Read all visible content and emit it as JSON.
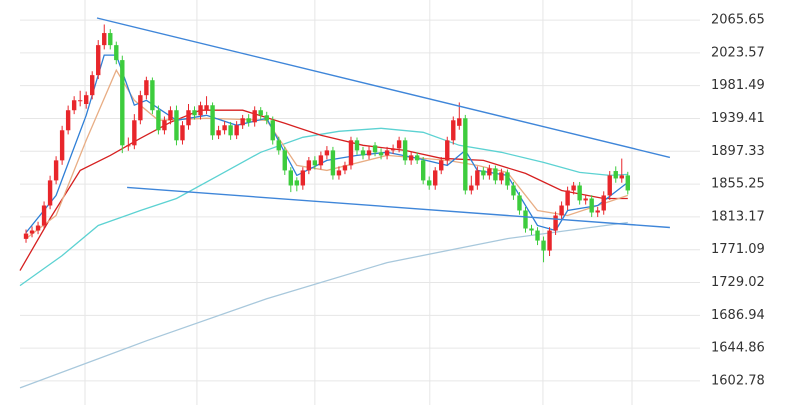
{
  "chart_data": {
    "type": "candlestick",
    "open": [
      1785.0,
      1791.8,
      1795.7,
      1802.1,
      1827.8,
      1860.0,
      1885.7,
      1924.3,
      1950.0,
      1962.8,
      1958.0,
      1969.3,
      1995.0,
      2033.5,
      2049.0,
      2033.5,
      2014.3,
      1905.0,
      1905.0,
      1937.1,
      1969.3,
      1988.5,
      1950.0,
      1924.3,
      1937.1,
      1950.0,
      1911.4,
      1930.7,
      1950.0,
      1943.5,
      1950.0,
      1956.4,
      1917.8,
      1924.3,
      1930.7,
      1917.8,
      1930.7,
      1939.7,
      1934.5,
      1950.0,
      1943.5,
      1937.1,
      1911.4,
      1898.5,
      1872.8,
      1860.0,
      1853.5,
      1872.8,
      1885.7,
      1879.3,
      1892.1,
      1898.5,
      1866.4,
      1872.8,
      1879.3,
      1911.4,
      1898.5,
      1892.1,
      1905.0,
      1896.0,
      1892.1,
      1898.5,
      1901.1,
      1911.4,
      1885.7,
      1892.1,
      1885.7,
      1860.0,
      1853.5,
      1872.8,
      1885.7,
      1911.4,
      1930.0,
      1939.7,
      1847.1,
      1853.5,
      1872.8,
      1866.4,
      1875.4,
      1860.0,
      1870.3,
      1853.5,
      1840.7,
      1821.4,
      1798.3,
      1795.7,
      1782.8,
      1770.0,
      1795.7,
      1815.0,
      1827.8,
      1847.1,
      1853.5,
      1834.3,
      1836.8,
      1818.8,
      1821.4,
      1840.7,
      1872.0,
      1862.5,
      1866.4
    ],
    "high": [
      1797,
      1801,
      1807,
      1833,
      1866,
      1891,
      1930,
      1956,
      1968,
      1975,
      1974,
      2000,
      2040,
      2060,
      2054,
      2038,
      2020,
      1915,
      1945,
      1975,
      1993,
      1992,
      1956,
      1942,
      1955,
      1956,
      1936,
      1958,
      1955,
      1961,
      1968,
      1960,
      1930,
      1936,
      1935,
      1936,
      1944,
      1945,
      1955,
      1954,
      1948,
      1942,
      1916,
      1903,
      1877,
      1864,
      1877,
      1890,
      1891,
      1897,
      1904,
      1903,
      1878,
      1884,
      1916,
      1915,
      1903,
      1904,
      1909,
      1901,
      1903,
      1906,
      1916,
      1915,
      1897,
      1896,
      1890,
      1865,
      1877,
      1890,
      1916,
      1942,
      1960,
      1944,
      1866,
      1878,
      1877,
      1880,
      1879,
      1875,
      1874,
      1858,
      1845,
      1826,
      1803,
      1800,
      1788,
      1800,
      1820,
      1833,
      1852,
      1858,
      1858,
      1842,
      1841,
      1826,
      1846,
      1872,
      1878,
      1888,
      1871
    ],
    "low": [
      1780,
      1787,
      1791,
      1797,
      1823,
      1855,
      1880,
      1919,
      1945,
      1955,
      1952,
      1964,
      1990,
      2028,
      2028,
      2009,
      1895,
      1898,
      1900,
      1932,
      1964,
      1945,
      1919,
      1919,
      1932,
      1905,
      1906,
      1925,
      1938,
      1938,
      1945,
      1912,
      1913,
      1919,
      1912,
      1913,
      1926,
      1929,
      1929,
      1938,
      1932,
      1906,
      1893,
      1867,
      1845,
      1846,
      1848,
      1868,
      1874,
      1874,
      1887,
      1861,
      1861,
      1868,
      1874,
      1893,
      1887,
      1887,
      1891,
      1887,
      1887,
      1894,
      1896,
      1880,
      1880,
      1881,
      1855,
      1848,
      1848,
      1868,
      1880,
      1906,
      1925,
      1842,
      1842,
      1848,
      1861,
      1861,
      1855,
      1855,
      1848,
      1835,
      1816,
      1793,
      1790,
      1777,
      1755,
      1763,
      1790,
      1810,
      1822,
      1842,
      1829,
      1829,
      1813,
      1813,
      1816,
      1835,
      1857,
      1857,
      1842
    ],
    "close": [
      1791.8,
      1795.7,
      1802.1,
      1827.8,
      1860.0,
      1885.7,
      1924.3,
      1950.0,
      1962.8,
      1962.8,
      1969.3,
      1995.0,
      2033.5,
      2049.0,
      2033.5,
      2014.3,
      1905.0,
      1905.0,
      1937.1,
      1969.3,
      1988.5,
      1950.0,
      1924.3,
      1937.1,
      1950.0,
      1911.4,
      1930.7,
      1950.0,
      1943.5,
      1956.4,
      1956.4,
      1917.8,
      1924.3,
      1930.7,
      1917.8,
      1930.7,
      1939.7,
      1934.5,
      1950.0,
      1943.5,
      1937.1,
      1911.4,
      1898.5,
      1872.8,
      1853.5,
      1853.5,
      1872.8,
      1885.7,
      1879.3,
      1892.1,
      1898.5,
      1866.4,
      1872.8,
      1879.3,
      1911.4,
      1898.5,
      1892.1,
      1898.5,
      1896.0,
      1892.1,
      1898.5,
      1901.1,
      1911.4,
      1885.7,
      1892.1,
      1885.7,
      1860.0,
      1853.5,
      1872.8,
      1885.7,
      1911.4,
      1937.1,
      1939.7,
      1847.1,
      1853.5,
      1872.8,
      1866.4,
      1875.4,
      1860.0,
      1870.3,
      1853.5,
      1840.7,
      1821.4,
      1798.3,
      1795.7,
      1782.8,
      1770.0,
      1795.7,
      1815.0,
      1827.8,
      1847.1,
      1853.5,
      1834.3,
      1836.8,
      1818.8,
      1821.4,
      1840.7,
      1866.4,
      1862.5,
      1866.4,
      1847.1
    ],
    "up_color": "#e8262b",
    "down_color": "#3dcc3d",
    "moving_averages": [
      {
        "color": "#a8c8dc",
        "x": [
          -1,
          20,
          40,
          60,
          80,
          100
        ],
        "values": [
          1593.8,
          1654.3,
          1708.3,
          1754.6,
          1785.4,
          1806.0
        ]
      },
      {
        "color": "#5cd2d2",
        "x": [
          -1,
          6,
          12,
          19,
          25,
          32,
          39,
          46,
          52,
          59,
          66,
          72,
          79,
          86,
          92,
          97,
          100
        ],
        "values": [
          1725.0,
          1763.5,
          1802.1,
          1821.4,
          1836.8,
          1866.4,
          1896.0,
          1915.3,
          1923.0,
          1926.8,
          1921.7,
          1905.0,
          1896.0,
          1883.1,
          1870.3,
          1866.4,
          1867.7
        ]
      },
      {
        "color": "#d62020",
        "x": [
          -1,
          4,
          9,
          14,
          19,
          24,
          29,
          36,
          43,
          49,
          56,
          63,
          69,
          76,
          83,
          89,
          96,
          100
        ],
        "values": [
          1744.3,
          1811.1,
          1872.8,
          1892.1,
          1914.0,
          1934.5,
          1950.0,
          1950.0,
          1933.3,
          1917.8,
          1905.0,
          1898.5,
          1888.3,
          1885.7,
          1869.0,
          1847.1,
          1836.8,
          1836.8
        ]
      },
      {
        "color": "#e8ad84",
        "x": [
          0,
          5,
          10,
          15,
          18,
          22,
          30,
          40,
          45,
          50,
          60,
          70,
          75,
          80,
          85,
          90,
          95,
          100
        ],
        "values": [
          1785.4,
          1815.0,
          1911.4,
          2001.4,
          1962.8,
          1937.1,
          1939.7,
          1937.1,
          1879.3,
          1872.8,
          1892.1,
          1885.7,
          1879.3,
          1870.3,
          1821.4,
          1815.0,
          1827.8,
          1840.7
        ]
      },
      {
        "color": "#2f7fd6",
        "x": [
          0,
          5,
          10,
          13,
          15,
          18,
          20,
          25,
          30,
          35,
          40,
          45,
          50,
          55,
          60,
          65,
          70,
          73,
          75,
          80,
          85,
          88,
          90,
          95,
          100
        ],
        "values": [
          1793.1,
          1840.7,
          1943.5,
          2020.7,
          2020.7,
          1956.4,
          1962.8,
          1937.1,
          1943.5,
          1930.7,
          1939.7,
          1866.4,
          1885.7,
          1892.1,
          1896.0,
          1888.3,
          1879.3,
          1898.5,
          1872.8,
          1866.4,
          1802.1,
          1795.7,
          1821.4,
          1827.8,
          1857.4
        ]
      }
    ],
    "trendlines": [
      {
        "color": "#3f86d9",
        "x": [
          11.8,
          107
        ],
        "values": [
          2068.3,
          1889.5
        ]
      },
      {
        "color": "#3f86d9",
        "x": [
          16.8,
          107
        ],
        "values": [
          1851.0,
          1799.6
        ]
      }
    ],
    "xlim": [
      -1,
      112
    ],
    "ylim": [
      1571.9,
      2091.4
    ],
    "xticks": [
      9.8,
      28.4,
      48,
      67.1,
      85.9,
      100.7
    ],
    "yticks": [
      2065.65,
      2023.57,
      1981.49,
      1939.41,
      1897.33,
      1855.25,
      1813.17,
      1771.09,
      1729.02,
      1686.94,
      1644.86,
      1602.78
    ],
    "grid": true
  }
}
